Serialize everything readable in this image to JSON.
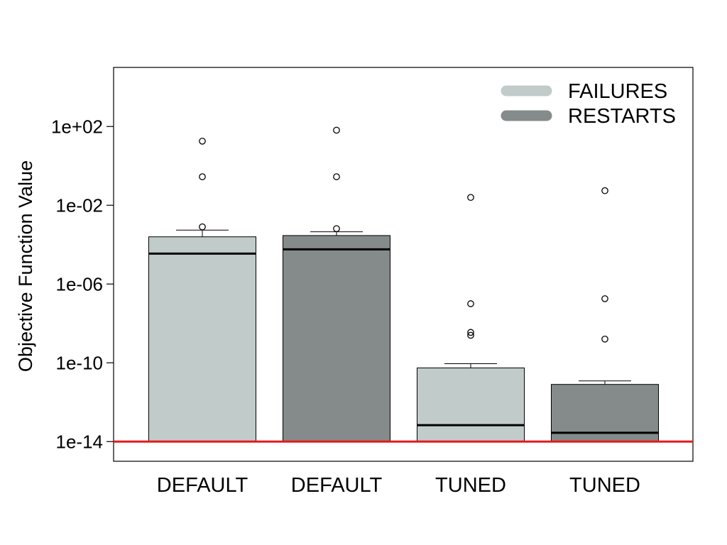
{
  "chart_data": {
    "type": "bar",
    "title": "",
    "xlabel": "",
    "ylabel": "Objective Function Value",
    "y_scale": "log10",
    "ylim": [
      1e-15,
      100000.0
    ],
    "y_ticks": [
      {
        "value": 100.0,
        "label": "1e+02"
      },
      {
        "value": 0.01,
        "label": "1e-02"
      },
      {
        "value": 1e-06,
        "label": "1e-06"
      },
      {
        "value": 1e-10,
        "label": "1e-10"
      },
      {
        "value": 1e-14,
        "label": "1e-14"
      }
    ],
    "baseline": 1e-14,
    "baseline_color": "#e41a1c",
    "grid": false,
    "legend": {
      "position": "top-right",
      "entries": [
        {
          "label": "FAILURES",
          "color": "#c1cbca"
        },
        {
          "label": "RESTARTS",
          "color": "#858b8a"
        }
      ]
    },
    "categories": [
      "DEFAULT",
      "DEFAULT",
      "TUNED",
      "TUNED"
    ],
    "bars": [
      {
        "category": "DEFAULT",
        "group": "FAILURES",
        "color": "#c1cbca",
        "value": 0.00025,
        "median": 3.5e-05,
        "whisker": 0.00055,
        "outliers": [
          18,
          0.28,
          0.0008
        ]
      },
      {
        "category": "DEFAULT",
        "group": "RESTARTS",
        "color": "#858b8a",
        "value": 0.00029,
        "median": 5.8e-05,
        "whisker": 0.00045,
        "outliers": [
          65,
          0.28,
          0.00065
        ]
      },
      {
        "category": "TUNED",
        "group": "FAILURES",
        "color": "#c1cbca",
        "value": 5.5e-11,
        "median": 6.8e-14,
        "whisker": 9e-11,
        "outliers": [
          0.025,
          1e-07,
          3.5e-09,
          2.5e-09
        ]
      },
      {
        "category": "TUNED",
        "group": "RESTARTS",
        "color": "#858b8a",
        "value": 8e-12,
        "median": 2.8e-14,
        "whisker": 1.2e-11,
        "outliers": [
          0.055,
          1.8e-07,
          1.6e-09
        ]
      }
    ]
  }
}
